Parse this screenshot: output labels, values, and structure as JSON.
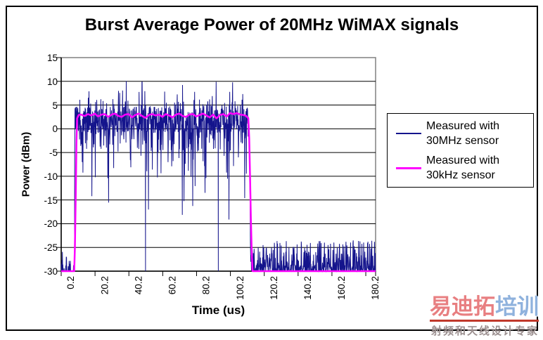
{
  "chart_data": {
    "type": "line",
    "title": "Burst Average Power of 20MHz WiMAX signals",
    "xlabel": "Time (us)",
    "ylabel": "Power (dBm)",
    "xlim": [
      0.2,
      186
    ],
    "ylim": [
      -30,
      15
    ],
    "x_ticks": [
      0.2,
      20.2,
      40.2,
      60.2,
      80.2,
      100.2,
      120.2,
      140.2,
      160.2,
      180.2
    ],
    "x_tick_labels": [
      "0.2",
      "20.2",
      "40.2",
      "60.2",
      "80.2",
      "100.2",
      "120.2",
      "140.2",
      "160.2",
      "180.2"
    ],
    "y_ticks": [
      15,
      10,
      5,
      0,
      -5,
      -10,
      -15,
      -20,
      -25,
      -30
    ],
    "grid": {
      "horizontal": true,
      "vertical": false,
      "gridline_color": "#000000"
    },
    "plot_border_color": "#808080",
    "axis_color": "#000000",
    "legend": {
      "position": "right",
      "entries": [
        {
          "label": "Measured with 30MHz sensor",
          "label_lines": [
            "Measured with",
            "30MHz sensor"
          ],
          "color": "#14148c",
          "weight": "thin"
        },
        {
          "label": "Measured with 30kHz sensor",
          "label_lines": [
            "Measured with",
            "30kHz sensor"
          ],
          "color": "#ff00ff",
          "weight": "thick"
        }
      ]
    },
    "series": [
      {
        "name": "Measured with 30MHz sensor",
        "color": "#14148c",
        "style": "noisy",
        "summary": "Wideband 30MHz sensor trace: noise floor near -30 dBm, burst from ~8 us to ~112 us fluctuating rapidly around +2 dBm (peaks to ~11 dBm, dips to -25 dBm and below), then noise floor -30 to -24 dBm to end of sweep",
        "noise_model": {
          "seed": 20,
          "samples_per_us": 7,
          "pre": {
            "t0": 0.2,
            "t1": 8.1,
            "base": -30,
            "spike_prob": 0.5,
            "spike_max_offset": 4.4,
            "spike_pow": 2
          },
          "burst": {
            "t0": 8.2,
            "t1": 111.0,
            "mean": 2.2,
            "cap": 11.5,
            "bands": [
              [
                0.5,
                -3.0,
                2.5
              ],
              [
                0.8,
                -7,
                4
              ],
              [
                0.93,
                -13,
                6
              ],
              [
                0.985,
                -20,
                8
              ],
              [
                1.0,
                -27,
                9.3
              ]
            ],
            "dropouts": [
              50,
              93
            ]
          },
          "fall": [
            [
              111.4,
              -4
            ],
            [
              111.8,
              -14
            ],
            [
              112.0,
              -24
            ]
          ],
          "post": {
            "t0": 112.2,
            "t1": 186,
            "base": -30,
            "spike_prob": 0.8,
            "spike_max_offset": 6.5,
            "spike_pow": 2
          }
        }
      },
      {
        "name": "Measured with 30kHz sensor",
        "color": "#ff00ff",
        "style": "smooth",
        "points": [
          [
            0.2,
            -30
          ],
          [
            7.9,
            -30
          ],
          [
            8.3,
            -25
          ],
          [
            8.8,
            -14
          ],
          [
            9.2,
            -3
          ],
          [
            9.6,
            2.2
          ],
          [
            10.5,
            2.9
          ],
          [
            12,
            3.0
          ],
          [
            14,
            2.7
          ],
          [
            16,
            3.1
          ],
          [
            18,
            2.8
          ],
          [
            20,
            3.2
          ],
          [
            22,
            2.6
          ],
          [
            24,
            3.0
          ],
          [
            26,
            3.1
          ],
          [
            28,
            2.5
          ],
          [
            30,
            3.0
          ],
          [
            32,
            3.2
          ],
          [
            34,
            2.7
          ],
          [
            36,
            2.5
          ],
          [
            38,
            3.0
          ],
          [
            40,
            3.1
          ],
          [
            42,
            2.4
          ],
          [
            44,
            2.9
          ],
          [
            46,
            3.2
          ],
          [
            48,
            2.7
          ],
          [
            50,
            2.3
          ],
          [
            52,
            2.9
          ],
          [
            54,
            3.1
          ],
          [
            56,
            2.8
          ],
          [
            58,
            3.0
          ],
          [
            60,
            2.5
          ],
          [
            62,
            3.1
          ],
          [
            64,
            2.8
          ],
          [
            66,
            2.4
          ],
          [
            68,
            3.0
          ],
          [
            70,
            3.2
          ],
          [
            72,
            2.7
          ],
          [
            74,
            2.5
          ],
          [
            76,
            3.0
          ],
          [
            78,
            3.1
          ],
          [
            80,
            2.6
          ],
          [
            82,
            2.9
          ],
          [
            84,
            3.2
          ],
          [
            86,
            2.8
          ],
          [
            88,
            2.4
          ],
          [
            90,
            3.0
          ],
          [
            92,
            2.2
          ],
          [
            94,
            2.9
          ],
          [
            96,
            3.1
          ],
          [
            98,
            2.6
          ],
          [
            100,
            3.3
          ],
          [
            102,
            3.1
          ],
          [
            104,
            3.3
          ],
          [
            106,
            3.0
          ],
          [
            108,
            2.9
          ],
          [
            109.5,
            2.7
          ],
          [
            110.8,
            2.2
          ],
          [
            111.3,
            -2
          ],
          [
            111.8,
            -10
          ],
          [
            112.3,
            -19
          ],
          [
            112.8,
            -26
          ],
          [
            113.3,
            -30
          ],
          [
            186,
            -30
          ]
        ]
      }
    ]
  },
  "watermark": {
    "big_red_text": "易迪拓",
    "big_blue_text": "培训",
    "subtitle": "射频和天线设计专家",
    "red_color": "#e87f81",
    "blue_color": "#8fb2dd",
    "underline_color": "#c0392b",
    "subtitle_color": "#9b8f8f"
  }
}
